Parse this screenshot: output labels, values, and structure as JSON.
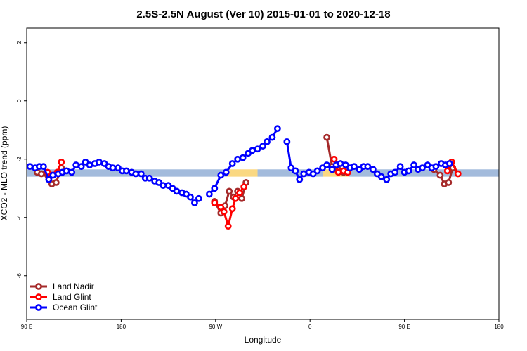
{
  "chart_data": {
    "type": "line",
    "title": "2.5S-2.5N August (Ver 10)   2015-01-01 to 2020-12-18",
    "xlabel": "Longitude",
    "ylabel": "XCO2 - MLO trend (ppm)",
    "xlim": [
      90,
      540
    ],
    "ylim": [
      -7.5,
      2.5
    ],
    "x_ticks": [
      {
        "value": 90,
        "label": "90 E"
      },
      {
        "value": 180,
        "label": "180"
      },
      {
        "value": 270,
        "label": "90 W"
      },
      {
        "value": 360,
        "label": "0"
      },
      {
        "value": 450,
        "label": "90 E"
      },
      {
        "value": 540,
        "label": "180"
      }
    ],
    "y_ticks": [
      {
        "value": 2,
        "label": "2"
      },
      {
        "value": 0,
        "label": "0"
      },
      {
        "value": -2,
        "label": "-2"
      },
      {
        "value": -4,
        "label": "-4"
      },
      {
        "value": -6,
        "label": "-6"
      }
    ],
    "grid": false,
    "legend_position": "bottom-left",
    "band": {
      "y_range": [
        -2.6,
        -2.35
      ],
      "segments": [
        {
          "x_range": [
            90,
            281
          ],
          "color": "#a3bbdc"
        },
        {
          "x_range": [
            281,
            310
          ],
          "color": "#fad882"
        },
        {
          "x_range": [
            310,
            372
          ],
          "color": "#a3bbdc"
        },
        {
          "x_range": [
            372,
            397
          ],
          "color": "#fad882"
        },
        {
          "x_range": [
            397,
            540
          ],
          "color": "#a3bbdc"
        }
      ]
    },
    "series": [
      {
        "name": "Land Nadir",
        "color": "#a52a2a",
        "segments": [
          [
            [
              100,
              -2.45
            ],
            [
              104,
              -2.5
            ],
            [
              110,
              -2.55
            ],
            [
              114,
              -2.85
            ],
            [
              118,
              -2.8
            ],
            [
              123,
              -2.3
            ]
          ],
          [
            [
              269,
              -3.45
            ],
            [
              275,
              -3.85
            ],
            [
              279,
              -3.6
            ],
            [
              283,
              -3.1
            ],
            [
              287,
              -3.3
            ],
            [
              291,
              -3.1
            ],
            [
              295,
              -3.35
            ],
            [
              299,
              -2.8
            ]
          ],
          [
            [
              376,
              -1.25
            ],
            [
              381,
              -2.25
            ]
          ],
          [
            [
              382,
              -2.35
            ],
            [
              386,
              -2.2
            ],
            [
              392,
              -2.45
            ],
            [
              396,
              -2.35
            ]
          ],
          [
            [
              478,
              -2.35
            ],
            [
              484,
              -2.55
            ],
            [
              488,
              -2.85
            ],
            [
              492,
              -2.8
            ],
            [
              496,
              -2.3
            ]
          ]
        ]
      },
      {
        "name": "Land Glint",
        "color": "#ff0000",
        "segments": [
          [
            [
              110,
              -2.45
            ],
            [
              114,
              -2.55
            ],
            [
              119,
              -2.45
            ],
            [
              123,
              -2.1
            ]
          ],
          [
            [
              269,
              -3.5
            ],
            [
              275,
              -3.65
            ],
            [
              278,
              -3.8
            ],
            [
              282,
              -4.3
            ],
            [
              286,
              -3.7
            ],
            [
              289,
              -3.35
            ],
            [
              293,
              -3.15
            ],
            [
              297,
              -2.95
            ]
          ],
          [
            [
              383,
              -2.0
            ],
            [
              387,
              -2.45
            ],
            [
              392,
              -2.4
            ],
            [
              396,
              -2.45
            ]
          ],
          [
            [
              491,
              -2.4
            ],
            [
              495,
              -2.1
            ],
            [
              501,
              -2.5
            ]
          ]
        ]
      },
      {
        "name": "Ocean Glint",
        "color": "#0000ff",
        "segments": [
          [
            [
              93,
              -2.25
            ],
            [
              98,
              -2.3
            ],
            [
              102,
              -2.25
            ],
            [
              106,
              -2.25
            ],
            [
              111,
              -2.7
            ],
            [
              115,
              -2.55
            ],
            [
              120,
              -2.5
            ],
            [
              124,
              -2.45
            ],
            [
              128,
              -2.4
            ],
            [
              133,
              -2.45
            ],
            [
              137,
              -2.2
            ],
            [
              142,
              -2.25
            ],
            [
              146,
              -2.1
            ],
            [
              150,
              -2.2
            ],
            [
              155,
              -2.15
            ],
            [
              159,
              -2.1
            ],
            [
              164,
              -2.15
            ],
            [
              168,
              -2.25
            ],
            [
              172,
              -2.3
            ],
            [
              177,
              -2.3
            ],
            [
              181,
              -2.4
            ],
            [
              185,
              -2.4
            ],
            [
              190,
              -2.45
            ],
            [
              194,
              -2.5
            ],
            [
              199,
              -2.5
            ],
            [
              203,
              -2.65
            ],
            [
              207,
              -2.65
            ],
            [
              212,
              -2.75
            ],
            [
              216,
              -2.8
            ],
            [
              220,
              -2.9
            ],
            [
              225,
              -2.9
            ],
            [
              229,
              -3.0
            ],
            [
              233,
              -3.1
            ],
            [
              238,
              -3.15
            ],
            [
              242,
              -3.2
            ],
            [
              246,
              -3.3
            ],
            [
              250,
              -3.5
            ],
            [
              254,
              -3.35
            ]
          ],
          [
            [
              264,
              -3.2
            ],
            [
              269,
              -3.0
            ],
            [
              275,
              -2.55
            ],
            [
              280,
              -2.45
            ],
            [
              286,
              -2.15
            ],
            [
              291,
              -2.0
            ],
            [
              296,
              -1.95
            ],
            [
              301,
              -1.8
            ],
            [
              305,
              -1.7
            ],
            [
              310,
              -1.65
            ],
            [
              315,
              -1.55
            ],
            [
              319,
              -1.4
            ],
            [
              324,
              -1.25
            ],
            [
              329,
              -0.95
            ]
          ],
          [
            [
              338,
              -1.4
            ],
            [
              342,
              -2.3
            ],
            [
              346,
              -2.4
            ],
            [
              350,
              -2.7
            ],
            [
              354,
              -2.5
            ],
            [
              359,
              -2.45
            ],
            [
              363,
              -2.5
            ],
            [
              367,
              -2.4
            ],
            [
              372,
              -2.3
            ],
            [
              376,
              -2.2
            ],
            [
              381,
              -2.35
            ],
            [
              385,
              -2.2
            ],
            [
              389,
              -2.15
            ],
            [
              394,
              -2.2
            ],
            [
              398,
              -2.3
            ],
            [
              402,
              -2.25
            ],
            [
              407,
              -2.35
            ],
            [
              411,
              -2.25
            ],
            [
              415,
              -2.25
            ],
            [
              420,
              -2.35
            ],
            [
              424,
              -2.5
            ],
            [
              428,
              -2.6
            ],
            [
              433,
              -2.7
            ],
            [
              437,
              -2.5
            ],
            [
              441,
              -2.45
            ],
            [
              446,
              -2.25
            ],
            [
              450,
              -2.45
            ],
            [
              454,
              -2.4
            ],
            [
              459,
              -2.2
            ],
            [
              463,
              -2.35
            ],
            [
              467,
              -2.3
            ],
            [
              472,
              -2.2
            ],
            [
              476,
              -2.3
            ],
            [
              480,
              -2.25
            ],
            [
              485,
              -2.15
            ],
            [
              489,
              -2.2
            ],
            [
              493,
              -2.15
            ]
          ]
        ]
      }
    ]
  }
}
